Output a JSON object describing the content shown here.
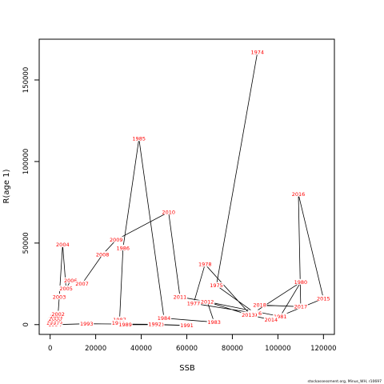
{
  "chart_data": {
    "type": "line",
    "title": "",
    "xlabel": "SSB",
    "ylabel": "R(age 1)",
    "xlim": [
      -4800,
      124800
    ],
    "ylim": [
      -6000,
      175000
    ],
    "x_ticks": [
      0,
      20000,
      40000,
      60000,
      80000,
      100000,
      120000
    ],
    "y_ticks": [
      0,
      50000,
      100000,
      150000
    ],
    "grid": false,
    "line_color": "#000000",
    "label_color": "#ff0000",
    "points": [
      {
        "year": "1974",
        "x": 91000,
        "y": 167000
      },
      {
        "year": "1975",
        "x": 73000,
        "y": 24000
      },
      {
        "year": "1976",
        "x": 90000,
        "y": 7000
      },
      {
        "year": "1977",
        "x": 63000,
        "y": 13000
      },
      {
        "year": "1978",
        "x": 68000,
        "y": 37000
      },
      {
        "year": "1979",
        "x": 88000,
        "y": 6000
      },
      {
        "year": "1980",
        "x": 110000,
        "y": 26000
      },
      {
        "year": "1981",
        "x": 101000,
        "y": 5000
      },
      {
        "year": "1982",
        "x": 69000,
        "y": 14000
      },
      {
        "year": "1983",
        "x": 72000,
        "y": 1500
      },
      {
        "year": "1984",
        "x": 50000,
        "y": 4000
      },
      {
        "year": "1985",
        "x": 39000,
        "y": 114000
      },
      {
        "year": "1986",
        "x": 32000,
        "y": 47000
      },
      {
        "year": "1987",
        "x": 30500,
        "y": 3000
      },
      {
        "year": "1988",
        "x": 30000,
        "y": 1000
      },
      {
        "year": "1989",
        "x": 33000,
        "y": 0
      },
      {
        "year": "1990",
        "x": 47000,
        "y": 0
      },
      {
        "year": "1991",
        "x": 60000,
        "y": -500
      },
      {
        "year": "1992",
        "x": 46000,
        "y": 200
      },
      {
        "year": "1993",
        "x": 16000,
        "y": 500
      },
      {
        "year": "1994",
        "x": 2000,
        "y": 0
      },
      {
        "year": "1995",
        "x": 1500,
        "y": 800
      },
      {
        "year": "1996",
        "x": 2500,
        "y": 1500
      },
      {
        "year": "1997",
        "x": 1200,
        "y": 1000
      },
      {
        "year": "1998",
        "x": 1500,
        "y": 2500
      },
      {
        "year": "1999",
        "x": 2000,
        "y": 4000
      },
      {
        "year": "2000",
        "x": 2200,
        "y": 3500
      },
      {
        "year": "2001",
        "x": 2800,
        "y": 5000
      },
      {
        "year": "2002",
        "x": 3500,
        "y": 6500
      },
      {
        "year": "2003",
        "x": 4000,
        "y": 17000
      },
      {
        "year": "2004",
        "x": 5500,
        "y": 49000
      },
      {
        "year": "2005",
        "x": 7000,
        "y": 22000
      },
      {
        "year": "2006",
        "x": 9000,
        "y": 27000
      },
      {
        "year": "2007",
        "x": 14000,
        "y": 25000
      },
      {
        "year": "2008",
        "x": 23000,
        "y": 43000
      },
      {
        "year": "2009",
        "x": 29000,
        "y": 52000
      },
      {
        "year": "2010",
        "x": 52000,
        "y": 69000
      },
      {
        "year": "2011",
        "x": 57000,
        "y": 17000
      },
      {
        "year": "2012",
        "x": 69000,
        "y": 14000
      },
      {
        "year": "2013",
        "x": 87000,
        "y": 6000
      },
      {
        "year": "2014",
        "x": 97000,
        "y": 3000
      },
      {
        "year": "2015",
        "x": 120000,
        "y": 16000
      },
      {
        "year": "2016",
        "x": 109000,
        "y": 80000
      },
      {
        "year": "2017",
        "x": 110000,
        "y": 11000
      },
      {
        "year": "2018",
        "x": 92000,
        "y": 12000
      }
    ]
  },
  "footer": "stockassessment.org, Minus_WH, r10697"
}
